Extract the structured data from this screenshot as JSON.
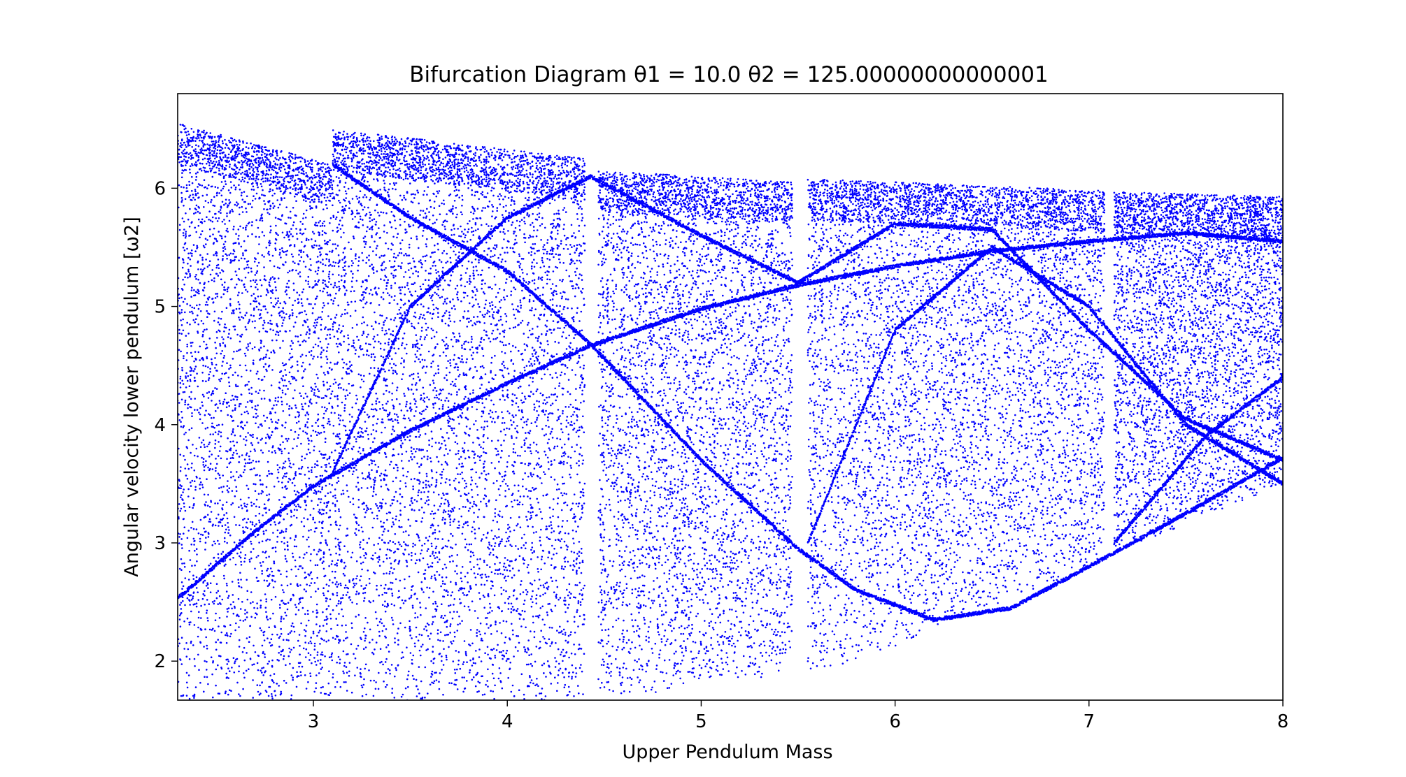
{
  "chart_data": {
    "type": "scatter",
    "title": "Bifurcation Diagram   θ1 = 10.0 θ2 = 125.00000000000001",
    "xlabel": "Upper Pendulum Mass",
    "ylabel": "Angular velocity lower pendulum [ω2]",
    "xlim": [
      2.3,
      8.0
    ],
    "ylim": [
      1.67,
      6.8
    ],
    "xticks": [
      {
        "value": 3,
        "label": "3"
      },
      {
        "value": 4,
        "label": "4"
      },
      {
        "value": 5,
        "label": "5"
      },
      {
        "value": 6,
        "label": "6"
      },
      {
        "value": 7,
        "label": "7"
      },
      {
        "value": 8,
        "label": "8"
      }
    ],
    "yticks": [
      {
        "value": 2,
        "label": "2"
      },
      {
        "value": 3,
        "label": "3"
      },
      {
        "value": 4,
        "label": "4"
      },
      {
        "value": 5,
        "label": "5"
      },
      {
        "value": 6,
        "label": "6"
      }
    ],
    "grid": false,
    "marker_color": "#0000ff",
    "chaotic_bands": [
      {
        "x_start": 2.3,
        "x_end": 3.1,
        "y_max_start": 6.55,
        "y_max_end": 6.2,
        "y_min_start": 1.67,
        "y_min_end": 1.67
      },
      {
        "x_start": 3.1,
        "x_end": 4.4,
        "y_max_start": 6.5,
        "y_max_end": 6.25,
        "y_min_start": 1.67,
        "y_min_end": 1.67
      },
      {
        "x_start": 4.47,
        "x_end": 5.47,
        "y_max_start": 6.15,
        "y_max_end": 6.05,
        "y_min_start": 1.67,
        "y_min_end": 1.9
      },
      {
        "x_start": 5.55,
        "x_end": 7.08,
        "y_max_start": 6.08,
        "y_max_end": 5.98,
        "y_min_start": 1.83,
        "y_min_end": 2.85
      },
      {
        "x_start": 7.13,
        "x_end": 8.0,
        "y_max_start": 5.97,
        "y_max_end": 5.93,
        "y_min_start": 2.9,
        "y_min_end": 3.5
      }
    ],
    "periodic_curves": [
      {
        "x": [
          2.3,
          2.7,
          3.0,
          3.5,
          4.0,
          4.43,
          5.0,
          5.5,
          6.0,
          6.5,
          7.0,
          7.5,
          8.0
        ],
        "y": [
          2.53,
          3.1,
          3.48,
          3.95,
          4.35,
          4.67,
          4.98,
          5.18,
          5.34,
          5.47,
          5.55,
          5.62,
          5.55
        ]
      },
      {
        "x": [
          3.1,
          3.5,
          4.0,
          4.43,
          5.0,
          5.5,
          5.8,
          6.2,
          6.6,
          7.0,
          7.5,
          8.0
        ],
        "y": [
          6.2,
          5.75,
          5.3,
          4.68,
          3.7,
          2.95,
          2.6,
          2.35,
          2.45,
          2.8,
          3.25,
          3.72
        ]
      },
      {
        "x": [
          3.1,
          3.5,
          4.0,
          4.43
        ],
        "y": [
          3.6,
          5.0,
          5.75,
          6.1
        ]
      },
      {
        "x": [
          4.43,
          5.0,
          5.5,
          6.0,
          6.5,
          7.0,
          7.5,
          8.0
        ],
        "y": [
          6.1,
          5.6,
          5.2,
          5.7,
          5.65,
          4.8,
          4.05,
          3.7
        ]
      },
      {
        "x": [
          5.55,
          6.0,
          6.5,
          7.0,
          7.5,
          8.0
        ],
        "y": [
          3.0,
          4.8,
          5.5,
          5.0,
          4.0,
          3.5
        ]
      },
      {
        "x": [
          7.13,
          7.6,
          8.0
        ],
        "y": [
          3.0,
          3.9,
          4.4
        ]
      }
    ]
  }
}
